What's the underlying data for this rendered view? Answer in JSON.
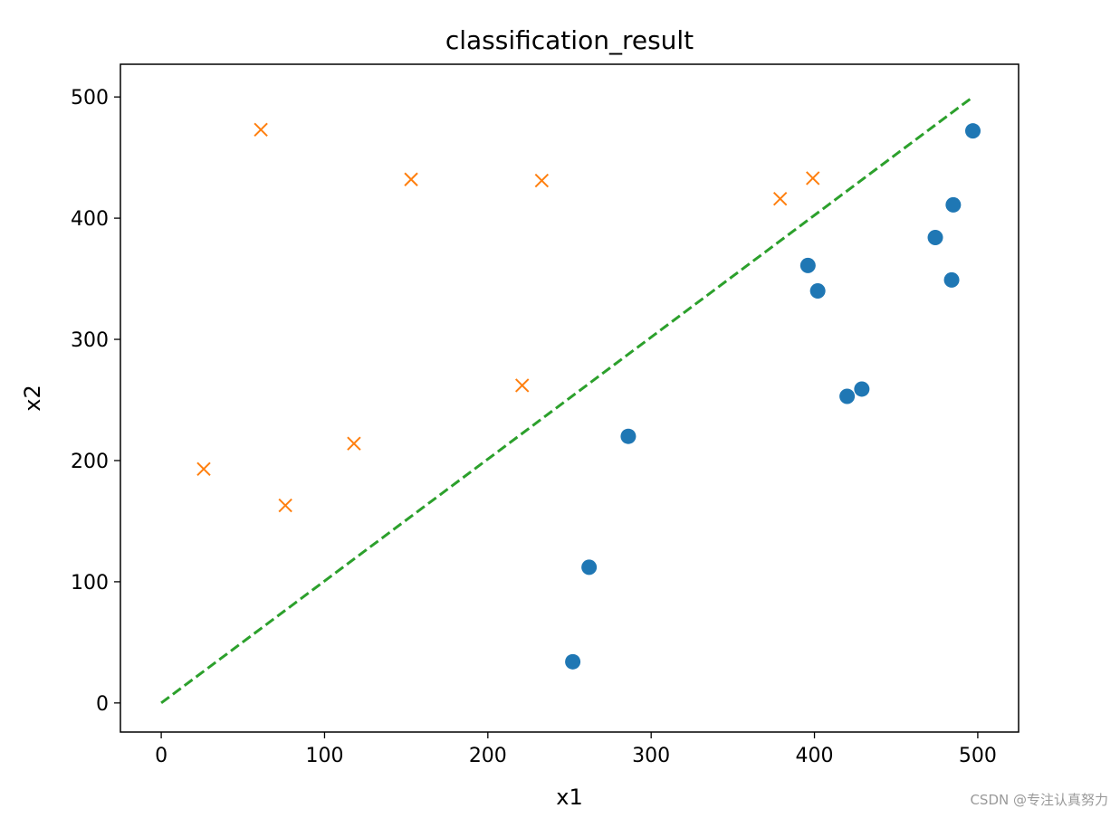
{
  "chart_data": {
    "type": "scatter",
    "title": "classification_result",
    "xlabel": "x1",
    "ylabel": "x2",
    "xlim": [
      -25,
      525
    ],
    "ylim": [
      -24,
      527
    ],
    "xticks": [
      0,
      100,
      200,
      300,
      400,
      500
    ],
    "yticks": [
      0,
      100,
      200,
      300,
      400,
      500
    ],
    "xtick_labels": [
      "0",
      "100",
      "200",
      "300",
      "400",
      "500"
    ],
    "ytick_labels": [
      "0",
      "100",
      "200",
      "300",
      "400",
      "500"
    ],
    "grid": false,
    "series": [
      {
        "marker": "circle",
        "color": "#1f77b4",
        "points": [
          [
            252,
            34
          ],
          [
            262,
            112
          ],
          [
            286,
            220
          ],
          [
            396,
            361
          ],
          [
            402,
            340
          ],
          [
            420,
            253
          ],
          [
            429,
            259
          ],
          [
            474,
            384
          ],
          [
            484,
            349
          ],
          [
            485,
            411
          ],
          [
            497,
            472
          ]
        ]
      },
      {
        "marker": "x",
        "color": "#ff7f0e",
        "points": [
          [
            26,
            193
          ],
          [
            61,
            473
          ],
          [
            76,
            163
          ],
          [
            118,
            214
          ],
          [
            153,
            432
          ],
          [
            221,
            262
          ],
          [
            233,
            431
          ],
          [
            379,
            416
          ],
          [
            399,
            433
          ]
        ]
      },
      {
        "marker": "dashed-line",
        "color": "#2ca02c",
        "points": [
          [
            0,
            0
          ],
          [
            497,
            500
          ]
        ]
      }
    ]
  },
  "watermark": "CSDN @专注认真努力"
}
